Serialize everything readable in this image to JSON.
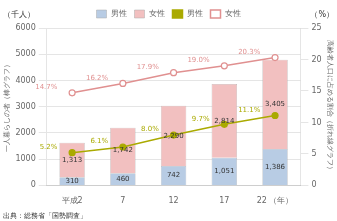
{
  "chart_data": {
    "type": "bar",
    "stacked": true,
    "categories": [
      "平成2",
      "7",
      "12",
      "17",
      "22 （年）"
    ],
    "series": [
      {
        "name": "男性",
        "type": "bar",
        "color": "#b8cce4",
        "values": [
          310,
          460,
          742,
          1051,
          1386
        ],
        "value_labels": [
          "310",
          "460",
          "742",
          "1,051",
          "1,386"
        ]
      },
      {
        "name": "女性",
        "type": "bar",
        "color": "#f2c0c0",
        "values": [
          1313,
          1742,
          2290,
          2814,
          3405
        ],
        "value_labels": [
          "1,313",
          "1,742",
          "2,290",
          "2,814",
          "3,405"
        ]
      },
      {
        "name": "男性",
        "type": "line",
        "axis": "y2",
        "color": "#aaaa00",
        "marker": "circle",
        "values": [
          5.2,
          6.1,
          8.0,
          9.7,
          11.1
        ],
        "value_labels": [
          "5.2%",
          "6.1%",
          "8.0%",
          "9.7%",
          "11.1%"
        ]
      },
      {
        "name": "女性",
        "type": "line",
        "axis": "y2",
        "color": "#e09090",
        "marker": "open_circle",
        "values": [
          14.7,
          16.2,
          17.9,
          19.0,
          20.3
        ],
        "value_labels": [
          "14.7%",
          "16.2%",
          "17.9%",
          "19.0%",
          "20.3%"
        ]
      }
    ],
    "ylim": [
      0,
      6000
    ],
    "yticks": [
      0,
      1000,
      2000,
      3000,
      4000,
      5000,
      6000
    ],
    "y2lim": [
      0,
      25
    ],
    "y2ticks": [
      0,
      5,
      10,
      15,
      20,
      25
    ],
    "ylabel": "一人暮らしの者（棒グラフ）",
    "y2label": "高齢者人口に占める割合（折れ線グラフ）",
    "annotations": [
      "（千人）",
      "（%）"
    ],
    "source": "出典：総務省「国勢調査」",
    "grid": true,
    "legend": "top",
    "data_labels": true
  }
}
